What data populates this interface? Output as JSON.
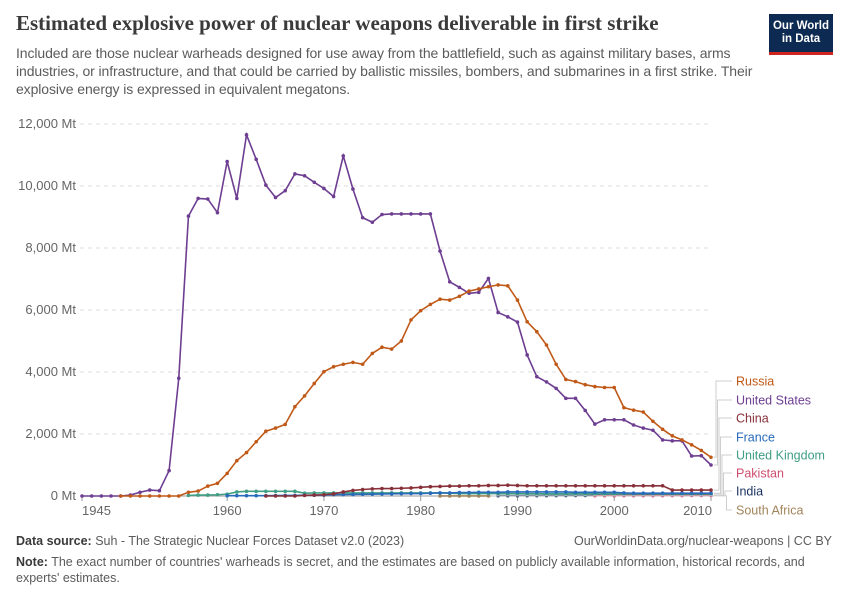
{
  "header": {
    "title": "Estimated explosive power of nuclear weapons deliverable in first strike",
    "subtitle": "Included are those nuclear warheads designed for use away from the battlefield, such as against military bases, arms industries, or infrastructure, and that could be carried by ballistic missiles, bombers, and submarines in a first strike. Their explosive energy is expressed in equivalent megatons.",
    "logo": "Our World in Data"
  },
  "footer": {
    "source_label": "Data source:",
    "source": "Suh - The Strategic Nuclear Forces Dataset v2.0 (2023)",
    "url": "OurWorldinData.org/nuclear-weapons | CC BY",
    "note_label": "Note:",
    "note": "The exact number of countries' warheads is secret, and the estimates are based on publicly available information, historical records, and experts' estimates."
  },
  "chart_data": {
    "type": "line",
    "title": "Estimated explosive power of nuclear weapons deliverable in first strike",
    "xlim": [
      1945,
      2010
    ],
    "ylim": [
      0,
      12000
    ],
    "grid": true,
    "legend": "right",
    "x_ticks": [
      "1945",
      "1960",
      "1970",
      "1980",
      "1990",
      "2000",
      "2010"
    ],
    "y_ticks": [
      "0 Mt",
      "2,000 Mt",
      "4,000 Mt",
      "6,000 Mt",
      "8,000 Mt",
      "10,000 Mt",
      "12,000 Mt"
    ],
    "y_tick_values": [
      0,
      2000,
      4000,
      6000,
      8000,
      10000,
      12000
    ],
    "series": [
      {
        "name": "Russia",
        "color": "#c05917",
        "start_year": 1949,
        "values": [
          0,
          0,
          0,
          0,
          0,
          0,
          0,
          120,
          160,
          320,
          410,
          730,
          1140,
          1400,
          1750,
          2090,
          2190,
          2310,
          2880,
          3230,
          3630,
          4010,
          4170,
          4250,
          4310,
          4250,
          4600,
          4800,
          4740,
          5000,
          5680,
          5980,
          6180,
          6350,
          6320,
          6440,
          6610,
          6680,
          6750,
          6810,
          6780,
          6320,
          5620,
          5300,
          4870,
          4250,
          3760,
          3690,
          3590,
          3530,
          3500,
          3500,
          2850,
          2770,
          2710,
          2410,
          2150,
          1940,
          1810,
          1650,
          1470,
          1250
        ]
      },
      {
        "name": "United States",
        "color": "#6d3e91",
        "start_year": 1945,
        "values": [
          0,
          0,
          0,
          0,
          0,
          30,
          120,
          190,
          171,
          820,
          3800,
          9030,
          9600,
          9580,
          9140,
          10790,
          9600,
          11650,
          10860,
          10030,
          9630,
          9850,
          10390,
          10330,
          10120,
          9920,
          9660,
          10970,
          9900,
          8980,
          8830,
          9080,
          9100,
          9100,
          9100,
          9100,
          9100,
          7900,
          6910,
          6730,
          6540,
          6570,
          7020,
          5920,
          5780,
          5610,
          4550,
          3850,
          3680,
          3470,
          3150,
          3150,
          2760,
          2320,
          2460,
          2460,
          2460,
          2290,
          2190,
          2120,
          1810,
          1780,
          1780,
          1290,
          1300,
          1000
        ]
      },
      {
        "name": "China",
        "color": "#883039",
        "start_year": 1964,
        "values": [
          0,
          0,
          0,
          0,
          20,
          30,
          40,
          70,
          130,
          180,
          210,
          230,
          240,
          240,
          250,
          260,
          280,
          300,
          310,
          320,
          320,
          330,
          330,
          340,
          340,
          350,
          340,
          330,
          330,
          330,
          330,
          330,
          330,
          330,
          330,
          330,
          330,
          330,
          330,
          330,
          330,
          330,
          190,
          190,
          190,
          190,
          190
        ]
      },
      {
        "name": "France",
        "color": "#286bbb",
        "start_year": 1960,
        "values": [
          10,
          10,
          10,
          10,
          10,
          15,
          20,
          20,
          25,
          25,
          30,
          40,
          45,
          50,
          55,
          60,
          65,
          70,
          75,
          80,
          80,
          90,
          100,
          100,
          110,
          110,
          120,
          120,
          120,
          130,
          130,
          130,
          130,
          130,
          130,
          130,
          120,
          120,
          120,
          120,
          120,
          100,
          90,
          90,
          90,
          90,
          90,
          90,
          90,
          90,
          90
        ]
      },
      {
        "name": "United Kingdom",
        "color": "#3f9e84",
        "start_year": 1956,
        "values": [
          20,
          30,
          30,
          40,
          60,
          130,
          150,
          150,
          150,
          150,
          150,
          150,
          90,
          100,
          100,
          100,
          100,
          100,
          100,
          100,
          100,
          100,
          100,
          100,
          100,
          100,
          100,
          90,
          80,
          80,
          80,
          80,
          80,
          80,
          80,
          70,
          70,
          70,
          70,
          70,
          70,
          70,
          70,
          70,
          70,
          70,
          70,
          70,
          70,
          70,
          70,
          70,
          70,
          70,
          70
        ]
      },
      {
        "name": "Pakistan",
        "color": "#cf4d6f",
        "start_year": 1998,
        "values": [
          10,
          10,
          10,
          12,
          12,
          12,
          14,
          14,
          15,
          15,
          16,
          16,
          18
        ]
      },
      {
        "name": "India",
        "color": "#18305d",
        "start_year": 1988,
        "values": [
          10,
          10,
          10,
          12,
          12,
          14,
          15,
          15,
          16,
          16,
          18,
          18,
          20,
          20,
          20,
          22,
          22,
          24,
          24,
          25,
          25,
          26,
          26
        ]
      },
      {
        "name": "South Africa",
        "color": "#a2845a",
        "start_year": 1982,
        "values": [
          2,
          2,
          3,
          3,
          3,
          3
        ]
      }
    ]
  }
}
